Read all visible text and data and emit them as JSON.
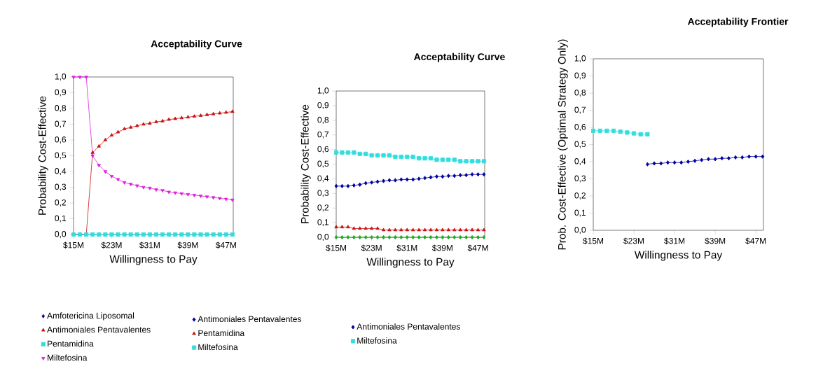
{
  "chart_data": [
    {
      "type": "line",
      "title": "Acceptability Curve",
      "xlabel": "Willingness to Pay",
      "ylabel": "Probability Cost-Effective",
      "x": [
        15,
        16.33,
        17.67,
        19,
        20.33,
        21.67,
        23,
        24.33,
        25.67,
        27,
        28.33,
        29.67,
        31,
        32.33,
        33.67,
        35,
        36.33,
        37.67,
        39,
        40.33,
        41.67,
        43,
        44.33,
        45.67,
        47,
        48.33
      ],
      "series": [
        {
          "name": "Amfotericina Liposomal",
          "color": "#0000a0",
          "marker": "diamond",
          "values": [
            null,
            null,
            null,
            null,
            null,
            null,
            null,
            null,
            null,
            null,
            null,
            null,
            null,
            null,
            null,
            null,
            null,
            null,
            null,
            null,
            null,
            null,
            null,
            null,
            null,
            null
          ]
        },
        {
          "name": "Antimoniales Pentavalentes",
          "color": "#cc1010",
          "marker": "triangle",
          "values": [
            0,
            0,
            0,
            0.52,
            0.56,
            0.6,
            0.63,
            0.65,
            0.67,
            0.68,
            0.69,
            0.7,
            0.705,
            0.715,
            0.72,
            0.73,
            0.735,
            0.74,
            0.745,
            0.75,
            0.755,
            0.76,
            0.765,
            0.77,
            0.775,
            0.78
          ]
        },
        {
          "name": "Pentamidina",
          "color": "#33dddd",
          "marker": "square",
          "values": [
            0,
            0,
            0,
            0,
            0,
            0,
            0,
            0,
            0,
            0,
            0,
            0,
            0,
            0,
            0,
            0,
            0,
            0,
            0,
            0,
            0,
            0,
            0,
            0,
            0,
            0
          ]
        },
        {
          "name": "Miltefosina",
          "color": "#dd22dd",
          "marker": "triangle-down",
          "values": [
            1,
            1,
            1,
            0.5,
            0.44,
            0.4,
            0.37,
            0.35,
            0.33,
            0.32,
            0.31,
            0.3,
            0.295,
            0.285,
            0.28,
            0.27,
            0.265,
            0.26,
            0.255,
            0.25,
            0.245,
            0.24,
            0.235,
            0.23,
            0.225,
            0.22
          ]
        }
      ],
      "xlim": [
        15,
        48.5
      ],
      "ylim": [
        0,
        1
      ],
      "xticks": [
        {
          "value": 15,
          "label": "$15M"
        },
        {
          "value": 23,
          "label": "$23M"
        },
        {
          "value": 31,
          "label": "$31M"
        },
        {
          "value": 39,
          "label": "$39M"
        },
        {
          "value": 47,
          "label": "$47M"
        }
      ],
      "yticks": [
        {
          "value": 0,
          "label": "0,0"
        },
        {
          "value": 0.1,
          "label": "0,1"
        },
        {
          "value": 0.2,
          "label": "0,2"
        },
        {
          "value": 0.3,
          "label": "0,3"
        },
        {
          "value": 0.4,
          "label": "0,4"
        },
        {
          "value": 0.5,
          "label": "0,5"
        },
        {
          "value": 0.6,
          "label": "0,6"
        },
        {
          "value": 0.7,
          "label": "0,7"
        },
        {
          "value": 0.8,
          "label": "0,8"
        },
        {
          "value": 0.9,
          "label": "0,9"
        },
        {
          "value": 1,
          "label": "1,0"
        }
      ],
      "legend": "bottom left"
    },
    {
      "type": "line",
      "title": "Acceptability Curve",
      "xlabel": "Willingness to Pay",
      "ylabel": "Probability Cost-Effective",
      "x": [
        15,
        16.33,
        17.67,
        19,
        20.33,
        21.67,
        23,
        24.33,
        25.67,
        27,
        28.33,
        29.67,
        31,
        32.33,
        33.67,
        35,
        36.33,
        37.67,
        39,
        40.33,
        41.67,
        43,
        44.33,
        45.67,
        47,
        48.33
      ],
      "series": [
        {
          "name": "Antimoniales Pentavalentes",
          "color": "#0000a0",
          "marker": "diamond",
          "values": [
            0.35,
            0.35,
            0.35,
            0.355,
            0.36,
            0.37,
            0.375,
            0.38,
            0.385,
            0.39,
            0.39,
            0.395,
            0.395,
            0.395,
            0.4,
            0.405,
            0.41,
            0.415,
            0.415,
            0.42,
            0.42,
            0.425,
            0.425,
            0.43,
            0.43,
            0.43
          ]
        },
        {
          "name": "Pentamidina",
          "color": "#cc1010",
          "marker": "triangle",
          "values": [
            0.07,
            0.07,
            0.07,
            0.06,
            0.06,
            0.06,
            0.06,
            0.06,
            0.05,
            0.05,
            0.05,
            0.05,
            0.05,
            0.05,
            0.05,
            0.05,
            0.05,
            0.05,
            0.05,
            0.05,
            0.05,
            0.05,
            0.05,
            0.05,
            0.05,
            0.05
          ]
        },
        {
          "name": "Miltefosina",
          "color": "#33dddd",
          "marker": "square",
          "values": [
            0.58,
            0.58,
            0.58,
            0.58,
            0.57,
            0.57,
            0.56,
            0.56,
            0.56,
            0.56,
            0.55,
            0.55,
            0.55,
            0.55,
            0.54,
            0.54,
            0.54,
            0.53,
            0.53,
            0.53,
            0.53,
            0.52,
            0.52,
            0.52,
            0.52,
            0.52
          ]
        },
        {
          "color": "#22aa22",
          "marker": "diamond",
          "values": [
            0,
            0,
            0,
            0,
            0,
            0,
            0,
            0,
            0,
            0,
            0,
            0,
            0,
            0,
            0,
            0,
            0,
            0,
            0,
            0,
            0,
            0,
            0,
            0,
            0,
            0
          ]
        }
      ],
      "xlim": [
        15,
        48.5
      ],
      "ylim": [
        0,
        1
      ],
      "xticks": [
        {
          "value": 15,
          "label": "$15M"
        },
        {
          "value": 23,
          "label": "$23M"
        },
        {
          "value": 31,
          "label": "$31M"
        },
        {
          "value": 39,
          "label": "$39M"
        },
        {
          "value": 47,
          "label": "$47M"
        }
      ],
      "yticks": [
        {
          "value": 0,
          "label": "0,0"
        },
        {
          "value": 0.1,
          "label": "0,1"
        },
        {
          "value": 0.2,
          "label": "0,2"
        },
        {
          "value": 0.3,
          "label": "0,3"
        },
        {
          "value": 0.4,
          "label": "0,4"
        },
        {
          "value": 0.5,
          "label": "0,5"
        },
        {
          "value": 0.6,
          "label": "0,6"
        },
        {
          "value": 0.7,
          "label": "0,7"
        },
        {
          "value": 0.8,
          "label": "0,8"
        },
        {
          "value": 0.9,
          "label": "0,9"
        },
        {
          "value": 1,
          "label": "1,0"
        }
      ],
      "legend": "bottom left"
    },
    {
      "type": "line",
      "title": "Acceptability Frontier",
      "xlabel": "Willingness to Pay",
      "ylabel": "Prob. Cost-Effective (Optimal Strategy Only)",
      "x": [
        15,
        16.33,
        17.67,
        19,
        20.33,
        21.67,
        23,
        24.33,
        25.67,
        27,
        28.33,
        29.67,
        31,
        32.33,
        33.67,
        35,
        36.33,
        37.67,
        39,
        40.33,
        41.67,
        43,
        44.33,
        45.67,
        47,
        48.33
      ],
      "series": [
        {
          "name": "Antimoniales Pentavalentes",
          "color": "#0000a0",
          "marker": "diamond",
          "values": [
            null,
            null,
            null,
            null,
            null,
            null,
            null,
            null,
            0.385,
            0.39,
            0.39,
            0.395,
            0.395,
            0.395,
            0.4,
            0.405,
            0.41,
            0.415,
            0.415,
            0.42,
            0.42,
            0.425,
            0.425,
            0.43,
            0.43,
            0.43
          ]
        },
        {
          "name": "Miltefosina",
          "color": "#33dddd",
          "marker": "square",
          "values": [
            0.58,
            0.58,
            0.58,
            0.58,
            0.575,
            0.57,
            0.565,
            0.56,
            0.56,
            null,
            null,
            null,
            null,
            null,
            null,
            null,
            null,
            null,
            null,
            null,
            null,
            null,
            null,
            null,
            null,
            null
          ]
        }
      ],
      "xlim": [
        15,
        48.5
      ],
      "ylim": [
        0,
        1
      ],
      "xticks": [
        {
          "value": 15,
          "label": "$15M"
        },
        {
          "value": 23,
          "label": "$23M"
        },
        {
          "value": 31,
          "label": "$31M"
        },
        {
          "value": 39,
          "label": "$39M"
        },
        {
          "value": 47,
          "label": "$47M"
        }
      ],
      "yticks": [
        {
          "value": 0,
          "label": "0,0"
        },
        {
          "value": 0.1,
          "label": "0,1"
        },
        {
          "value": 0.2,
          "label": "0,2"
        },
        {
          "value": 0.3,
          "label": "0,3"
        },
        {
          "value": 0.4,
          "label": "0,4"
        },
        {
          "value": 0.5,
          "label": "0,5"
        },
        {
          "value": 0.6,
          "label": "0,6"
        },
        {
          "value": 0.7,
          "label": "0,7"
        },
        {
          "value": 0.8,
          "label": "0,8"
        },
        {
          "value": 0.9,
          "label": "0,9"
        },
        {
          "value": 1,
          "label": "1,0"
        }
      ],
      "legend": "bottom left"
    }
  ]
}
